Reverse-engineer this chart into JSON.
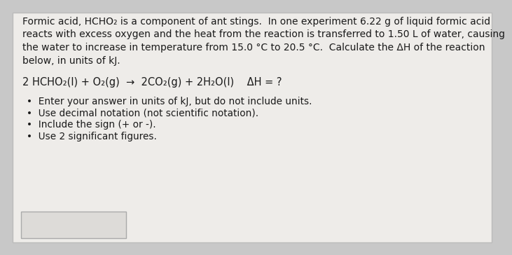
{
  "bg_outer": "#c8c8c8",
  "bg_inner": "#e8e6e3",
  "text_color": "#1a1a1a",
  "paragraph_line1": "Formic acid, HCHO₂ is a component of ant stings.  In one experiment 6.22 g of liquid formic acid",
  "paragraph_line2": "reacts with excess oxygen and the heat from the reaction is transferred to 1.50 L of water, causing",
  "paragraph_line3": "the water to increase in temperature from 15.0 °C to 20.5 °C.  Calculate the ΔH of the reaction",
  "paragraph_line4": "below, in units of kJ.",
  "equation": "2 HCHO₂(l) + O₂(g)  →  2CO₂(g) + 2H₂O(l)    ΔH = ?",
  "bullets": [
    "Enter your answer in units of kJ, but do not include units.",
    "Use decimal notation (not scientific notation).",
    "Include the sign (+ or -).",
    "Use 2 significant figures."
  ],
  "font_size": 10.0,
  "font_size_eq": 10.5,
  "font_size_bullets": 9.8,
  "input_box_color": "#dddbd8",
  "input_box_border": "#aaaaaa"
}
